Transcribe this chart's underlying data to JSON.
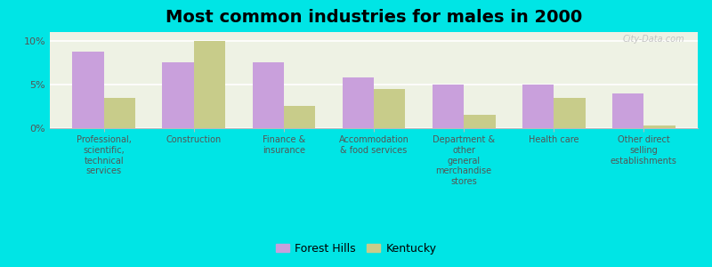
{
  "title": "Most common industries for males in 2000",
  "categories": [
    "Professional,\nscientific,\ntechnical\nservices",
    "Construction",
    "Finance &\ninsurance",
    "Accommodation\n& food services",
    "Department &\nother\ngeneral\nmerchandise\nstores",
    "Health care",
    "Other direct\nselling\nestablishments"
  ],
  "forest_hills": [
    8.8,
    7.5,
    7.5,
    5.8,
    5.0,
    5.0,
    4.0
  ],
  "kentucky": [
    3.5,
    10.0,
    2.5,
    4.5,
    1.5,
    3.5,
    0.3
  ],
  "forest_hills_color": "#c9a0dc",
  "kentucky_color": "#c8cc8a",
  "background_color": "#00e5e5",
  "plot_bg_color": "#eef2e4",
  "ylim": [
    0,
    11
  ],
  "yticks": [
    0,
    5,
    10
  ],
  "ytick_labels": [
    "0%",
    "5%",
    "10%"
  ],
  "bar_width": 0.35,
  "title_fontsize": 14,
  "legend_labels": [
    "Forest Hills",
    "Kentucky"
  ],
  "watermark": "City-Data.com"
}
